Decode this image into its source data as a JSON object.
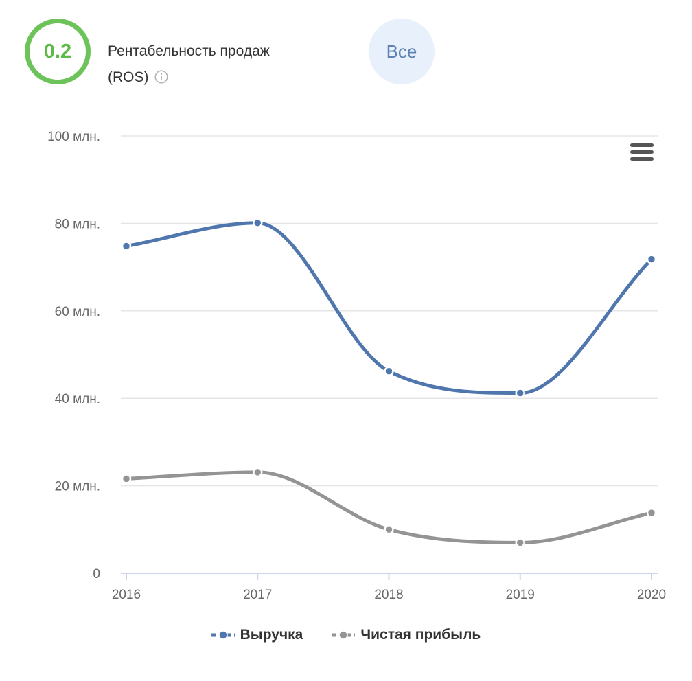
{
  "header": {
    "score": "0.2",
    "title_line1": "Рентабельность продаж",
    "title_line2": "(ROS)",
    "filter_label": "Все"
  },
  "colors": {
    "score_ring": "#6cc35a",
    "score_text": "#5cba46",
    "filter_bg": "#e8f1fb",
    "filter_text": "#5b82b0",
    "revenue": "#4f77ad",
    "profit": "#959393",
    "grid": "#e6e6e6",
    "axis": "#ccd6eb"
  },
  "icons": {
    "info": "info-icon",
    "menu": "hamburger-menu-icon"
  },
  "chart_data": {
    "type": "line",
    "x": [
      "2016",
      "2017",
      "2018",
      "2019",
      "2020"
    ],
    "series": [
      {
        "name": "Выручка",
        "color": "#4f77ad",
        "values": [
          74.8,
          80.1,
          46.2,
          41.2,
          71.8
        ]
      },
      {
        "name": "Чистая прибыль",
        "color": "#959393",
        "values": [
          21.6,
          23.1,
          10.0,
          7.0,
          13.8
        ]
      }
    ],
    "ylim": [
      0,
      100
    ],
    "y_ticks": [
      0,
      20,
      40,
      60,
      80,
      100
    ],
    "y_tick_labels": [
      "0",
      "20 млн.",
      "40 млн.",
      "60 млн.",
      "80 млн.",
      "100 млн."
    ],
    "grid": true,
    "legend_position": "bottom-center",
    "smooth": true
  }
}
